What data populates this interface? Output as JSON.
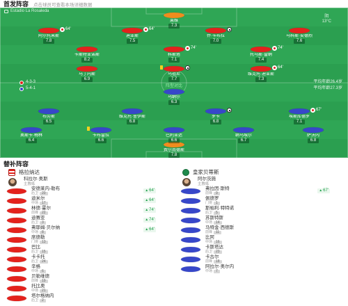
{
  "header": {
    "title": "首发阵容",
    "hint": "点击球员可查看本场详细数据"
  },
  "match_info": {
    "stadium": "Estadio La Rosaleda",
    "weather": "阴",
    "temperature": "13°C",
    "center_label": "阵型对比"
  },
  "colors": {
    "home_jersey": "#e3221d",
    "away_jersey": "#3747c9",
    "goalkeeper": "#f08c1e",
    "pitch": "#2fa655",
    "minute_green": "#21a04b"
  },
  "lineup": {
    "home": {
      "formation": "4-3-3",
      "avg_age": "平均年龄26.4岁",
      "jersey_color": "#e3221d",
      "gk_color": "#f08c1e",
      "rows": [
        [
          {
            "name": "莱维",
            "rating": "7.3"
          }
        ],
        [
          {
            "name": "阿尔托米斯",
            "rating": "7.8",
            "events": [
              {
                "type": "sub-off",
                "minute": "64'"
              }
            ]
          },
          {
            "name": "迪亚斯",
            "rating": "7.5",
            "events": [
              {
                "type": "sub-off",
                "minute": "64'"
              }
            ]
          },
          {
            "name": "乔·卡布拉",
            "rating": "7.0",
            "events": [
              {
                "type": "goal"
              }
            ]
          },
          {
            "name": "马科斯·安德烈",
            "rating": "7.6"
          }
        ],
        [
          {
            "name": "卡斯特亚诺斯",
            "rating": "8.2"
          },
          {
            "name": "科斯塔",
            "rating": "7.1",
            "events": [
              {
                "type": "sub-off",
                "minute": "74'"
              }
            ]
          },
          {
            "name": "托马斯·雷纳",
            "rating": "7.4",
            "events": [
              {
                "type": "sub-off",
                "minute": "74'"
              }
            ]
          }
        ],
        [
          {
            "name": "马丁内斯",
            "rating": "6.9"
          },
          {
            "name": "乌祖尼",
            "rating": "7.7",
            "events": [
              {
                "type": "yellow-card"
              },
              {
                "type": "goal"
              }
            ]
          },
          {
            "name": "维克托·迪亚斯",
            "rating": "7.3",
            "events": [
              {
                "type": "sub-off",
                "minute": "64'"
              }
            ]
          }
        ]
      ]
    },
    "away": {
      "formation": "5-4-1",
      "avg_age": "平均年龄27.3岁",
      "jersey_color": "#3747c9",
      "gk_color": "#f08c1e",
      "rows": [
        [
          {
            "name": "费尔南德斯",
            "rating": "7.8"
          }
        ],
        [
          {
            "name": "奥斯卡·梅林",
            "rating": "6.4"
          },
          {
            "name": "卡布雷拉",
            "rating": "6.6",
            "events": [
              {
                "type": "yellow-card"
              }
            ]
          },
          {
            "name": "巴利亚达",
            "rating": "6.6"
          },
          {
            "name": "纳乌埃尔",
            "rating": "6.7"
          },
          {
            "name": "萨沃内",
            "rating": "6.8"
          }
        ],
        [
          {
            "name": "布劳斯",
            "rating": "6.5"
          },
          {
            "name": "维克托·鲁伊斯",
            "rating": "6.8"
          },
          {
            "name": "罗卡",
            "rating": "6.8",
            "events": [
              {
                "type": "goal"
              }
            ]
          },
          {
            "name": "埃斯库德罗",
            "rating": "7.1",
            "events": [
              {
                "type": "sub-off",
                "minute": "67'"
              }
            ]
          }
        ],
        [
          {
            "name": "乌纳尔",
            "rating": "6.3"
          }
        ]
      ]
    }
  },
  "subs": {
    "title": "替补阵容",
    "home": {
      "team": "格拉纳达",
      "coach": {
        "name": "科拉尔·奥斯",
        "role": "主教练"
      },
      "players": [
        {
          "name": "安德莱内-勒布",
          "pos": "后卫",
          "number": "20",
          "minute": "64'"
        },
        {
          "name": "迪米尔",
          "pos": "中场",
          "number": "17",
          "minute": "64'"
        },
        {
          "name": "林德·霍尔",
          "pos": "前锋",
          "number": "22",
          "minute": "74'"
        },
        {
          "name": "迪赛亚",
          "pos": "后卫",
          "number": "3",
          "minute": "74'"
        },
        {
          "name": "弗耶姆·贝尔纳",
          "pos": "中场",
          "number": "8",
          "minute": "64'"
        },
        {
          "name": "席德勒",
          "pos": "门将",
          "number": "13"
        },
        {
          "name": "巴比",
          "pos": "后卫",
          "number": "15"
        },
        {
          "name": "卡卡托",
          "pos": "后卫",
          "number": "24"
        },
        {
          "name": "辛格",
          "pos": "中场",
          "number": "6"
        },
        {
          "name": "贝勒维德",
          "pos": "前锋",
          "number": "19"
        },
        {
          "name": "托比奥",
          "pos": "中场",
          "number": "21"
        },
        {
          "name": "塔尔格纳内",
          "pos": "后卫",
          "number": "2"
        }
      ]
    },
    "away": {
      "team": "皇家贝蒂斯",
      "coach": {
        "name": "阿尔茨施",
        "role": "主教练"
      },
      "players": [
        {
          "name": "弗拉因·斯特",
          "pos": "前锋",
          "number": "9",
          "minute": "67'"
        },
        {
          "name": "佩德罗",
          "pos": "门将",
          "number": "1"
        },
        {
          "name": "斯帕利·特特诺",
          "pos": "后卫",
          "number": "5"
        },
        {
          "name": "苏斯特斯",
          "pos": "中场",
          "number": "14"
        },
        {
          "name": "马特金·西德斯",
          "pos": "前锋",
          "number": "11"
        },
        {
          "name": "比阿",
          "pos": "中场",
          "number": "16"
        },
        {
          "name": "卡斯塔达",
          "pos": "后卫",
          "number": "23"
        },
        {
          "name": "卡古尔",
          "pos": "前锋",
          "number": "18"
        },
        {
          "name": "阿拉尔·奥尔内",
          "pos": "中场",
          "number": "7"
        }
      ]
    }
  }
}
